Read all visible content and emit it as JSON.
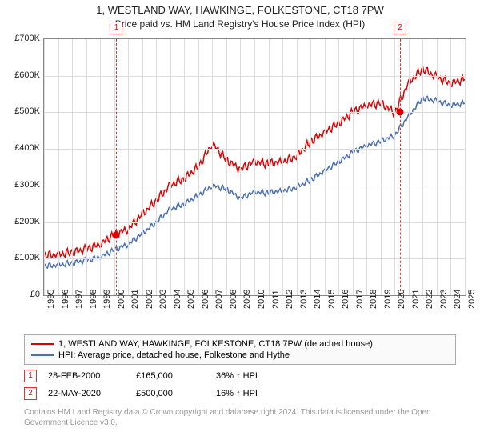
{
  "title": "1, WESTLAND WAY, HAWKINGE, FOLKESTONE, CT18 7PW",
  "subtitle": "Price paid vs. HM Land Registry's House Price Index (HPI)",
  "chart": {
    "type": "line",
    "ylim": [
      0,
      700000
    ],
    "ytick_step": 100000,
    "yticklabels": [
      "£0",
      "£100K",
      "£200K",
      "£300K",
      "£400K",
      "£500K",
      "£600K",
      "£700K"
    ],
    "xlim": [
      1995,
      2025
    ],
    "xticks": [
      1995,
      1996,
      1997,
      1998,
      1999,
      2000,
      2001,
      2002,
      2003,
      2004,
      2005,
      2006,
      2007,
      2008,
      2009,
      2010,
      2011,
      2012,
      2013,
      2014,
      2015,
      2016,
      2017,
      2018,
      2019,
      2020,
      2021,
      2022,
      2023,
      2024,
      2025
    ],
    "grid_color": "#dcdcdc",
    "background": "#ffffff",
    "series": [
      {
        "name": "price_paid",
        "color": "#d00",
        "width": 1.5,
        "points": [
          [
            1995,
            110000
          ],
          [
            1996,
            110000
          ],
          [
            1997,
            118000
          ],
          [
            1998,
            125000
          ],
          [
            1999,
            140000
          ],
          [
            2000,
            165000
          ],
          [
            2001,
            182000
          ],
          [
            2002,
            220000
          ],
          [
            2003,
            260000
          ],
          [
            2004,
            300000
          ],
          [
            2005,
            320000
          ],
          [
            2006,
            350000
          ],
          [
            2007,
            415000
          ],
          [
            2008,
            370000
          ],
          [
            2009,
            345000
          ],
          [
            2010,
            365000
          ],
          [
            2011,
            360000
          ],
          [
            2012,
            365000
          ],
          [
            2013,
            380000
          ],
          [
            2014,
            420000
          ],
          [
            2015,
            445000
          ],
          [
            2016,
            470000
          ],
          [
            2017,
            500000
          ],
          [
            2018,
            520000
          ],
          [
            2019,
            525000
          ],
          [
            2020,
            500000
          ],
          [
            2021,
            580000
          ],
          [
            2022,
            620000
          ],
          [
            2023,
            595000
          ],
          [
            2024,
            580000
          ],
          [
            2025,
            590000
          ]
        ]
      },
      {
        "name": "hpi",
        "color": "#4a6fb3",
        "width": 1.5,
        "points": [
          [
            1995,
            80000
          ],
          [
            1996,
            82000
          ],
          [
            1997,
            88000
          ],
          [
            1998,
            95000
          ],
          [
            1999,
            105000
          ],
          [
            2000,
            123000
          ],
          [
            2001,
            140000
          ],
          [
            2002,
            168000
          ],
          [
            2003,
            200000
          ],
          [
            2004,
            235000
          ],
          [
            2005,
            250000
          ],
          [
            2006,
            272000
          ],
          [
            2007,
            300000
          ],
          [
            2008,
            290000
          ],
          [
            2009,
            265000
          ],
          [
            2010,
            282000
          ],
          [
            2011,
            280000
          ],
          [
            2012,
            285000
          ],
          [
            2013,
            295000
          ],
          [
            2014,
            315000
          ],
          [
            2015,
            340000
          ],
          [
            2016,
            365000
          ],
          [
            2017,
            390000
          ],
          [
            2018,
            410000
          ],
          [
            2019,
            420000
          ],
          [
            2020,
            438000
          ],
          [
            2021,
            490000
          ],
          [
            2022,
            540000
          ],
          [
            2023,
            530000
          ],
          [
            2024,
            520000
          ],
          [
            2025,
            525000
          ]
        ]
      }
    ],
    "markers": [
      {
        "idx": "1",
        "x": 2000.16,
        "y": 165000
      },
      {
        "idx": "2",
        "x": 2020.39,
        "y": 500000
      }
    ]
  },
  "legend": [
    {
      "color": "#d00",
      "label": "1, WESTLAND WAY, HAWKINGE, FOLKESTONE, CT18 7PW (detached house)"
    },
    {
      "color": "#4a6fb3",
      "label": "HPI: Average price, detached house, Folkestone and Hythe"
    }
  ],
  "transactions": [
    {
      "idx": "1",
      "date": "28-FEB-2000",
      "price": "£165,000",
      "ratio": "36% ↑ HPI"
    },
    {
      "idx": "2",
      "date": "22-MAY-2020",
      "price": "£500,000",
      "ratio": "16% ↑ HPI"
    }
  ],
  "disclaimer": "Contains HM Land Registry data © Crown copyright and database right 2024.\nThis data is licensed under the Open Government Licence v3.0."
}
